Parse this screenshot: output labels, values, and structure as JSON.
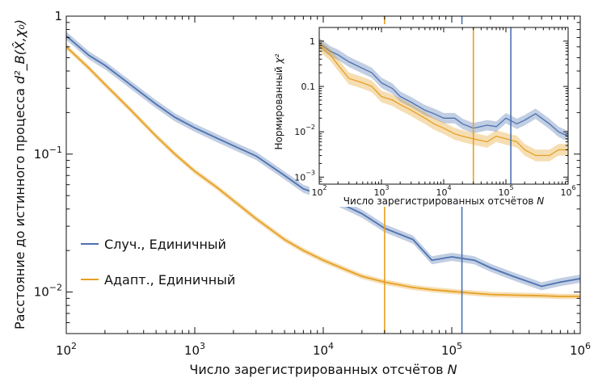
{
  "chart_data": [
    {
      "type": "line",
      "xlabel": "Число зарегистрированных отсчётов",
      "xlabel_var": "N",
      "ylabel": "Расстояние до истинного процесса",
      "ylabel_expr": "d²_B(X̂,χ₀)",
      "xscale": "log",
      "yscale": "log",
      "xlim": [
        100,
        1000000
      ],
      "ylim": [
        0.005,
        1
      ],
      "x_ticks": [
        {
          "base": "10",
          "exp": "2"
        },
        {
          "base": "10",
          "exp": "3"
        },
        {
          "base": "10",
          "exp": "4"
        },
        {
          "base": "10",
          "exp": "5"
        },
        {
          "base": "10",
          "exp": "6"
        }
      ],
      "y_ticks": [
        {
          "base": "10",
          "exp": "−2"
        },
        {
          "base": "10",
          "exp": "−1"
        },
        {
          "base": "1",
          "exp": ""
        }
      ],
      "legend_position": "left-middle",
      "series": [
        {
          "name": "Случ., Единичный",
          "color": "#4c72b0",
          "x": [
            100,
            150,
            200,
            300,
            500,
            700,
            1000,
            1500,
            2000,
            3000,
            5000,
            7000,
            10000,
            15000,
            20000,
            30000,
            50000,
            70000,
            100000,
            150000,
            200000,
            300000,
            500000,
            700000,
            1000000
          ],
          "y": [
            0.72,
            0.52,
            0.44,
            0.33,
            0.23,
            0.185,
            0.155,
            0.13,
            0.115,
            0.097,
            0.07,
            0.056,
            0.05,
            0.042,
            0.037,
            0.029,
            0.024,
            0.017,
            0.018,
            0.017,
            0.015,
            0.013,
            0.011,
            0.0118,
            0.0125
          ],
          "band": 0.07
        },
        {
          "name": "Адапт., Единичный",
          "color": "#e6a024",
          "x": [
            100,
            150,
            200,
            300,
            500,
            700,
            1000,
            1500,
            2000,
            3000,
            5000,
            7000,
            10000,
            15000,
            20000,
            30000,
            50000,
            70000,
            100000,
            150000,
            200000,
            300000,
            500000,
            700000,
            1000000
          ],
          "y": [
            0.6,
            0.42,
            0.32,
            0.22,
            0.135,
            0.1,
            0.075,
            0.057,
            0.046,
            0.034,
            0.024,
            0.02,
            0.017,
            0.0145,
            0.013,
            0.0118,
            0.0108,
            0.0104,
            0.0101,
            0.0098,
            0.0096,
            0.0095,
            0.0094,
            0.0093,
            0.0093
          ],
          "band": 0.045
        }
      ],
      "vlines": [
        {
          "x": 30000,
          "color": "#e6a024"
        },
        {
          "x": 120000,
          "color": "#4c72b0"
        }
      ]
    },
    {
      "type": "line",
      "position": "inset-top-right",
      "xlabel": "Число зарегистрированных отсчётов",
      "xlabel_var": "N",
      "ylabel": "Нормированный",
      "ylabel_var": "χ²",
      "xscale": "log",
      "yscale": "log",
      "xlim": [
        100,
        1000000
      ],
      "ylim": [
        0.0007,
        2
      ],
      "x_ticks": [
        {
          "base": "10",
          "exp": "2"
        },
        {
          "base": "10",
          "exp": "3"
        },
        {
          "base": "10",
          "exp": "4"
        },
        {
          "base": "10",
          "exp": "5"
        },
        {
          "base": "10",
          "exp": "6"
        }
      ],
      "y_ticks": [
        {
          "base": "10",
          "exp": "−3"
        },
        {
          "base": "10",
          "exp": "−2"
        },
        {
          "base": "0.1",
          "exp": ""
        },
        {
          "base": "1",
          "exp": ""
        }
      ],
      "series": [
        {
          "color": "#4c72b0",
          "x": [
            100,
            150,
            200,
            300,
            500,
            700,
            1000,
            1500,
            2000,
            3000,
            5000,
            7000,
            10000,
            15000,
            20000,
            30000,
            50000,
            70000,
            100000,
            150000,
            200000,
            300000,
            500000,
            700000,
            1000000
          ],
          "y": [
            0.9,
            0.6,
            0.5,
            0.35,
            0.25,
            0.2,
            0.12,
            0.09,
            0.06,
            0.045,
            0.03,
            0.025,
            0.02,
            0.02,
            0.015,
            0.012,
            0.014,
            0.013,
            0.02,
            0.015,
            0.018,
            0.025,
            0.015,
            0.01,
            0.008
          ],
          "band": 0.3
        },
        {
          "color": "#e6a024",
          "x": [
            100,
            150,
            200,
            300,
            500,
            700,
            1000,
            1500,
            2000,
            3000,
            5000,
            7000,
            10000,
            15000,
            20000,
            30000,
            50000,
            70000,
            100000,
            150000,
            200000,
            300000,
            500000,
            700000,
            1000000
          ],
          "y": [
            0.8,
            0.5,
            0.3,
            0.15,
            0.12,
            0.1,
            0.06,
            0.05,
            0.04,
            0.03,
            0.02,
            0.015,
            0.012,
            0.009,
            0.008,
            0.007,
            0.006,
            0.008,
            0.007,
            0.006,
            0.004,
            0.003,
            0.003,
            0.004,
            0.004
          ],
          "band": 0.35
        }
      ],
      "vlines": [
        {
          "x": 30000,
          "color": "#e6a024"
        },
        {
          "x": 120000,
          "color": "#4c72b0"
        }
      ]
    }
  ]
}
